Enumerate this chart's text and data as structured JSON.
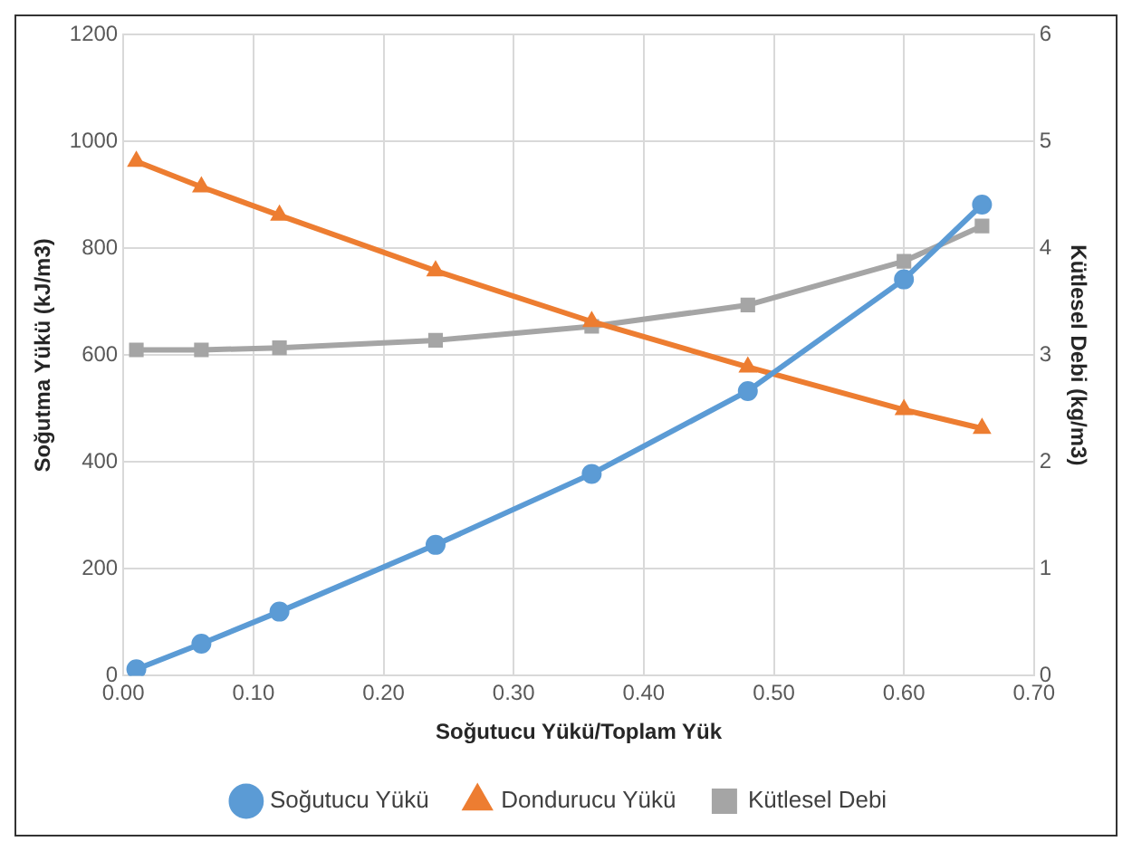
{
  "chart_data": {
    "type": "line",
    "xlabel": "Soğutucu Yükü/Toplam Yük",
    "ylabel": "Soğutma Yükü (kJ/m3)",
    "y2label": "Kütlesel Debi (kg/m3)",
    "x": [
      0.01,
      0.06,
      0.12,
      0.24,
      0.36,
      0.48,
      0.6,
      0.66
    ],
    "series": [
      {
        "name": "Soğutucu Yükü",
        "color": "#5b9bd5",
        "marker": "circle",
        "values": [
          12,
          60,
          120,
          245,
          378,
          533,
          742,
          882
        ]
      },
      {
        "name": "Dondurucu Yükü",
        "color": "#ed7d31",
        "marker": "triangle",
        "values": [
          963,
          915,
          862,
          758,
          663,
          578,
          498,
          463
        ]
      },
      {
        "name": "Kütlesel Debi",
        "color": "#a5a5a5",
        "marker": "square",
        "axis": "y2",
        "values": [
          3.05,
          3.05,
          3.07,
          3.14,
          3.27,
          3.47,
          3.88,
          4.21
        ]
      }
    ],
    "xlim": [
      0,
      0.7
    ],
    "xticks": [
      {
        "value": 0,
        "label": "0.00"
      },
      {
        "value": 0.1,
        "label": "0.10"
      },
      {
        "value": 0.2,
        "label": "0.20"
      },
      {
        "value": 0.3,
        "label": "0.30"
      },
      {
        "value": 0.4,
        "label": "0.40"
      },
      {
        "value": 0.5,
        "label": "0.50"
      },
      {
        "value": 0.6,
        "label": "0.60"
      },
      {
        "value": 0.7,
        "label": "0.70"
      }
    ],
    "ylim": [
      0,
      1200
    ],
    "yticks": [
      0,
      200,
      400,
      600,
      800,
      1000,
      1200
    ],
    "y2lim": [
      0,
      6
    ],
    "y2ticks": [
      0,
      1,
      2,
      3,
      4,
      5,
      6
    ],
    "grid": true,
    "legend": "bottom"
  }
}
